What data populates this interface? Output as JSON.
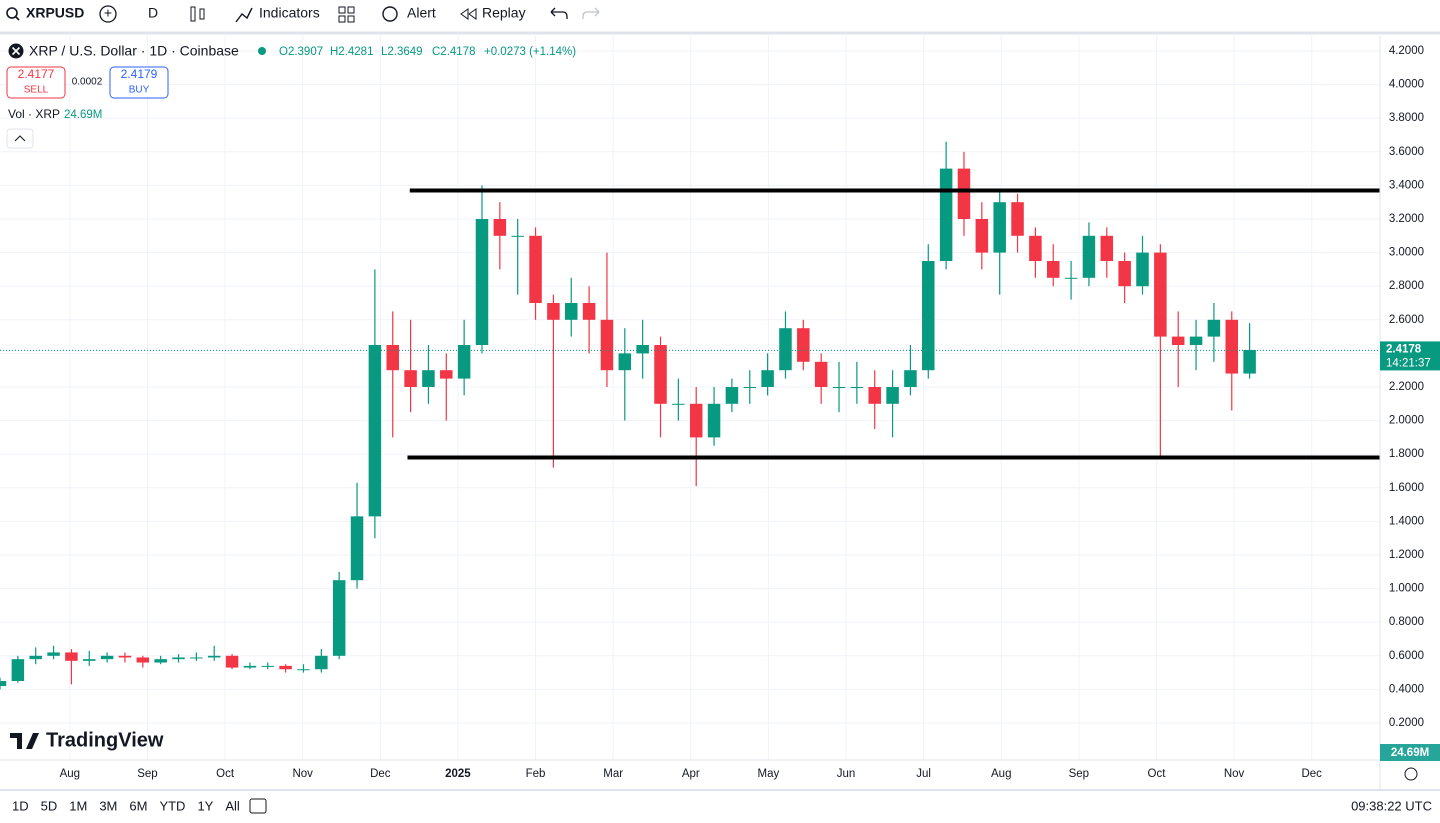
{
  "toolbar": {
    "symbol": "XRPUSD",
    "interval": "D",
    "indicators": "Indicators",
    "alert": "Alert",
    "replay": "Replay"
  },
  "legend": {
    "title": "XRP / U.S. Dollar · 1D · Coinbase",
    "open": "O2.3907",
    "high": "H2.4281",
    "low": "L2.3649",
    "close": "C2.4178",
    "change": "+0.0273 (+1.14%)",
    "sell_price": "2.4177",
    "sell": "SELL",
    "spread": "0.0002",
    "buy_price": "2.4179",
    "buy": "BUY",
    "volume_label": "Vol · XRP",
    "volume_value": "24.69M"
  },
  "watermark": "TradingView",
  "volume_badge": "24.69M",
  "bottom_bar": {
    "ranges": [
      "1D",
      "5D",
      "1M",
      "3M",
      "6M",
      "YTD",
      "1Y",
      "All"
    ],
    "clock": "09:38:22 UTC"
  },
  "chart_data": {
    "type": "candlestick",
    "up_color": "#089981",
    "down_color": "#f23645",
    "x": [
      -0.9,
      -0.67,
      -0.44,
      -0.21,
      0.02,
      0.25,
      0.48,
      0.71,
      0.94,
      1.17,
      1.4,
      1.63,
      1.86,
      2.09,
      2.32,
      2.55,
      2.78,
      3.01,
      3.24,
      3.47,
      3.7,
      3.93,
      4.16,
      4.39,
      4.62,
      4.85,
      5.08,
      5.31,
      5.54,
      5.77,
      6.0,
      6.23,
      6.46,
      6.69,
      6.92,
      7.15,
      7.38,
      7.61,
      7.84,
      8.07,
      8.3,
      8.53,
      8.76,
      8.99,
      9.22,
      9.45,
      9.68,
      9.91,
      10.14,
      10.37,
      10.6,
      10.83,
      11.06,
      11.29,
      11.52,
      11.75,
      11.98,
      12.21,
      12.44,
      12.67,
      12.9,
      13.13,
      13.36,
      13.59,
      13.82,
      14.05,
      14.28,
      14.51,
      14.74,
      14.97,
      15.2
    ],
    "open": [
      0.42,
      0.45,
      0.58,
      0.6,
      0.62,
      0.57,
      0.58,
      0.6,
      0.59,
      0.56,
      0.58,
      0.59,
      0.59,
      0.6,
      0.53,
      0.54,
      0.54,
      0.52,
      0.52,
      0.6,
      1.05,
      1.43,
      2.45,
      2.3,
      2.2,
      2.3,
      2.25,
      2.45,
      3.2,
      3.1,
      3.1,
      2.7,
      2.6,
      2.7,
      2.6,
      2.3,
      2.4,
      2.45,
      2.1,
      2.1,
      1.9,
      2.1,
      2.2,
      2.2,
      2.3,
      2.55,
      2.35,
      2.2,
      2.2,
      2.2,
      2.1,
      2.2,
      2.3,
      2.95,
      3.5,
      3.2,
      3.0,
      3.3,
      3.1,
      2.95,
      2.85,
      2.85,
      3.1,
      2.95,
      2.8,
      3.0,
      2.5,
      2.45,
      2.5,
      2.6,
      2.28
    ],
    "high": [
      0.47,
      0.6,
      0.65,
      0.66,
      0.64,
      0.63,
      0.62,
      0.62,
      0.6,
      0.6,
      0.61,
      0.62,
      0.66,
      0.61,
      0.56,
      0.56,
      0.55,
      0.55,
      0.64,
      1.1,
      1.63,
      2.9,
      2.65,
      2.6,
      2.45,
      2.4,
      2.6,
      3.4,
      3.3,
      3.2,
      3.15,
      2.75,
      2.85,
      2.8,
      3.0,
      2.55,
      2.6,
      2.5,
      2.25,
      2.2,
      2.2,
      2.25,
      2.3,
      2.4,
      2.65,
      2.6,
      2.4,
      2.35,
      2.35,
      2.3,
      2.3,
      2.45,
      3.05,
      3.66,
      3.6,
      3.3,
      3.38,
      3.35,
      3.15,
      3.05,
      2.95,
      3.18,
      3.15,
      3.0,
      3.1,
      3.05,
      2.65,
      2.6,
      2.7,
      2.65,
      2.58
    ],
    "low": [
      0.4,
      0.44,
      0.55,
      0.58,
      0.43,
      0.54,
      0.56,
      0.56,
      0.53,
      0.55,
      0.56,
      0.57,
      0.57,
      0.52,
      0.52,
      0.52,
      0.5,
      0.5,
      0.5,
      0.58,
      1.0,
      1.3,
      1.9,
      2.05,
      2.1,
      2.0,
      2.15,
      2.4,
      2.9,
      2.75,
      2.6,
      1.72,
      2.5,
      2.4,
      2.2,
      2.0,
      2.25,
      1.9,
      2.0,
      1.61,
      1.85,
      2.05,
      2.1,
      2.15,
      2.25,
      2.3,
      2.1,
      2.05,
      2.1,
      1.95,
      1.9,
      2.15,
      2.25,
      2.9,
      3.1,
      2.9,
      2.75,
      3.0,
      2.85,
      2.8,
      2.72,
      2.8,
      2.85,
      2.7,
      2.75,
      1.78,
      2.2,
      2.3,
      2.35,
      2.06,
      2.25
    ],
    "close": [
      0.45,
      0.58,
      0.6,
      0.62,
      0.57,
      0.58,
      0.6,
      0.59,
      0.56,
      0.58,
      0.59,
      0.59,
      0.6,
      0.53,
      0.54,
      0.54,
      0.52,
      0.52,
      0.6,
      1.05,
      1.43,
      2.45,
      2.3,
      2.2,
      2.3,
      2.25,
      2.45,
      3.2,
      3.1,
      3.1,
      2.7,
      2.6,
      2.7,
      2.6,
      2.3,
      2.4,
      2.45,
      2.1,
      2.1,
      1.9,
      2.1,
      2.2,
      2.2,
      2.3,
      2.55,
      2.35,
      2.2,
      2.2,
      2.2,
      2.1,
      2.2,
      2.3,
      2.95,
      3.5,
      3.2,
      3.0,
      3.3,
      3.1,
      2.95,
      2.85,
      2.85,
      3.1,
      2.95,
      2.8,
      3.0,
      2.5,
      2.45,
      2.5,
      2.6,
      2.28,
      2.42
    ],
    "xlim": [
      -0.9,
      16.88
    ],
    "xticks": [
      {
        "value": 0,
        "label": "Aug"
      },
      {
        "value": 1,
        "label": "Sep"
      },
      {
        "value": 2,
        "label": "Oct"
      },
      {
        "value": 3,
        "label": "Nov"
      },
      {
        "value": 4,
        "label": "Dec"
      },
      {
        "value": 5,
        "label": "2025"
      },
      {
        "value": 6,
        "label": "Feb"
      },
      {
        "value": 7,
        "label": "Mar"
      },
      {
        "value": 8,
        "label": "Apr"
      },
      {
        "value": 9,
        "label": "May"
      },
      {
        "value": 10,
        "label": "Jun"
      },
      {
        "value": 11,
        "label": "Jul"
      },
      {
        "value": 12,
        "label": "Aug"
      },
      {
        "value": 13,
        "label": "Sep"
      },
      {
        "value": 14,
        "label": "Oct"
      },
      {
        "value": 15,
        "label": "Nov"
      },
      {
        "value": 16,
        "label": "Dec"
      }
    ],
    "ylim": [
      0,
      4.3
    ],
    "yticks": [
      {
        "value": 0.2,
        "label": "0.2000"
      },
      {
        "value": 0.4,
        "label": "0.4000"
      },
      {
        "value": 0.6,
        "label": "0.6000"
      },
      {
        "value": 0.8,
        "label": "0.8000"
      },
      {
        "value": 1.0,
        "label": "1.0000"
      },
      {
        "value": 1.2,
        "label": "1.2000"
      },
      {
        "value": 1.4,
        "label": "1.4000"
      },
      {
        "value": 1.6,
        "label": "1.6000"
      },
      {
        "value": 1.8,
        "label": "1.8000"
      },
      {
        "value": 2.0,
        "label": "2.0000"
      },
      {
        "value": 2.2,
        "label": "2.2000"
      },
      {
        "value": 2.4,
        "label": "2.4000"
      },
      {
        "value": 2.6,
        "label": "2.6000"
      },
      {
        "value": 2.8,
        "label": "2.8000"
      },
      {
        "value": 3.0,
        "label": "3.0000"
      },
      {
        "value": 3.2,
        "label": "3.2000"
      },
      {
        "value": 3.4,
        "label": "3.4000"
      },
      {
        "value": 3.6,
        "label": "3.6000"
      },
      {
        "value": 3.8,
        "label": "3.8000"
      },
      {
        "value": 4.0,
        "label": "4.0000"
      },
      {
        "value": 4.2,
        "label": "4.2000"
      }
    ],
    "grid": true,
    "drawn_lines": [
      {
        "value": 3.37,
        "x_start": 4.38
      },
      {
        "value": 1.78,
        "x_start": 4.35
      }
    ],
    "last_price": 2.4178,
    "countdown": "14:21:37"
  }
}
